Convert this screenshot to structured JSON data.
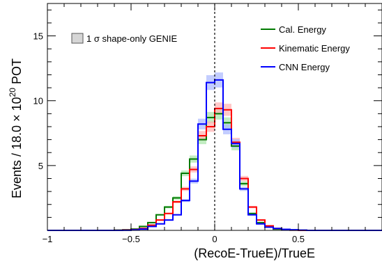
{
  "chart_data": {
    "type": "line",
    "style": "step-histogram",
    "xlabel": "(RecoE-TrueE)/TrueE",
    "ylabel_parts": [
      "Events / 18.0 ",
      "×",
      " 10",
      "20",
      " POT"
    ],
    "xlim": [
      -1,
      1
    ],
    "ylim": [
      0,
      17.5
    ],
    "x_ticks": [
      -1,
      -0.5,
      0,
      0.5
    ],
    "x_tick_labels": [
      "−1",
      "−0.5",
      "0",
      "0.5"
    ],
    "y_ticks": [
      5,
      10,
      15
    ],
    "y_tick_labels": [
      "5",
      "10",
      "15"
    ],
    "reference_line_x": 0,
    "band_legend": {
      "label_prefix": "1 σ",
      "label": " shape-only GENIE",
      "color": "#d6d6d6"
    },
    "bin_edges": [
      -1.0,
      -0.95,
      -0.9,
      -0.85,
      -0.8,
      -0.75,
      -0.7,
      -0.65,
      -0.6,
      -0.55,
      -0.5,
      -0.45,
      -0.4,
      -0.35,
      -0.3,
      -0.25,
      -0.2,
      -0.15,
      -0.1,
      -0.05,
      0.0,
      0.05,
      0.1,
      0.15,
      0.2,
      0.25,
      0.3,
      0.35,
      0.4,
      0.45,
      0.5,
      0.55,
      0.6,
      0.65,
      0.7,
      0.75,
      0.8,
      0.85,
      0.9,
      0.95,
      1.0
    ],
    "series": [
      {
        "name": "Cal. Energy",
        "color": "#007a00",
        "band_color": "#a8e6a8",
        "values": [
          0,
          0,
          0,
          0,
          0,
          0,
          0,
          0,
          0.02,
          0.05,
          0.1,
          0.3,
          0.6,
          1.2,
          1.8,
          2.5,
          4.4,
          5.5,
          7.0,
          8.7,
          9.0,
          8.3,
          6.5,
          3.6,
          1.3,
          0.6,
          0.3,
          0.1,
          0.05,
          0.02,
          0.01,
          0,
          0,
          0,
          0,
          0,
          0,
          0,
          0,
          0
        ]
      },
      {
        "name": "Kinematic Energy",
        "color": "#ff0000",
        "band_color": "#ffb0b0",
        "values": [
          0,
          0,
          0,
          0,
          0,
          0,
          0,
          0,
          0.01,
          0.03,
          0.06,
          0.15,
          0.4,
          0.8,
          1.3,
          2.2,
          3.2,
          4.7,
          7.3,
          8.0,
          9.4,
          9.3,
          6.8,
          4.0,
          1.8,
          0.8,
          0.35,
          0.15,
          0.05,
          0.02,
          0.01,
          0,
          0,
          0,
          0,
          0,
          0,
          0,
          0,
          0
        ]
      },
      {
        "name": "CNN Energy",
        "color": "#0000ff",
        "band_color": "#a9b8ff",
        "values": [
          0,
          0,
          0,
          0,
          0,
          0,
          0,
          0,
          0,
          0.01,
          0.04,
          0.1,
          0.3,
          0.5,
          0.8,
          1.2,
          2.3,
          3.8,
          8.2,
          11.4,
          11.6,
          7.8,
          6.7,
          3.2,
          1.2,
          0.5,
          0.25,
          0.15,
          0.08,
          0.05,
          0.02,
          0,
          0,
          0,
          0,
          0,
          0,
          0,
          0,
          0
        ]
      }
    ]
  }
}
